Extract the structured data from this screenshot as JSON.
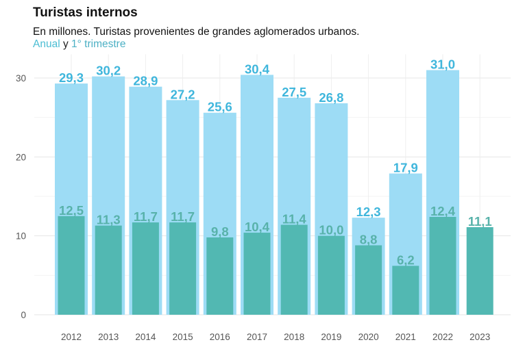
{
  "chart_data": {
    "type": "bar",
    "title": "Turistas internos",
    "subtitle": "En millones. Turistas provenientes de grandes aglomerados urbanos.",
    "legend": {
      "anual": "Anual",
      "connector": "y",
      "trimestre": "1° trimestre"
    },
    "categories": [
      "2012",
      "2013",
      "2014",
      "2015",
      "2016",
      "2017",
      "2018",
      "2019",
      "2020",
      "2021",
      "2022",
      "2023"
    ],
    "series": [
      {
        "name": "Anual",
        "values": [
          29.3,
          30.2,
          28.9,
          27.2,
          25.6,
          30.4,
          27.5,
          26.8,
          12.3,
          17.9,
          31.0,
          null
        ],
        "labels": [
          "29,3",
          "30,2",
          "28,9",
          "27,2",
          "25,6",
          "30,4",
          "27,5",
          "26,8",
          "12,3",
          "17,9",
          "31,0",
          ""
        ]
      },
      {
        "name": "1° trimestre",
        "values": [
          12.5,
          11.3,
          11.7,
          11.7,
          9.8,
          10.4,
          11.4,
          10.0,
          8.8,
          6.2,
          12.4,
          11.1
        ],
        "labels": [
          "12,5",
          "11,3",
          "11,7",
          "11,7",
          "9,8",
          "10,4",
          "11,4",
          "10,0",
          "8,8",
          "6,2",
          "12,4",
          "11,1"
        ]
      }
    ],
    "ylim": [
      0,
      33
    ],
    "yticks": [
      0,
      10,
      20,
      30
    ],
    "grid": true,
    "colors": {
      "anual_bar": "#9DDCF5",
      "anual_label": "#3FB6DC",
      "trimestre_bar": "#52B8B2",
      "trimestre_label": "#58B2AA",
      "legend_anual": "#4BBDD3",
      "legend_trimestre": "#4CB0C4"
    }
  }
}
